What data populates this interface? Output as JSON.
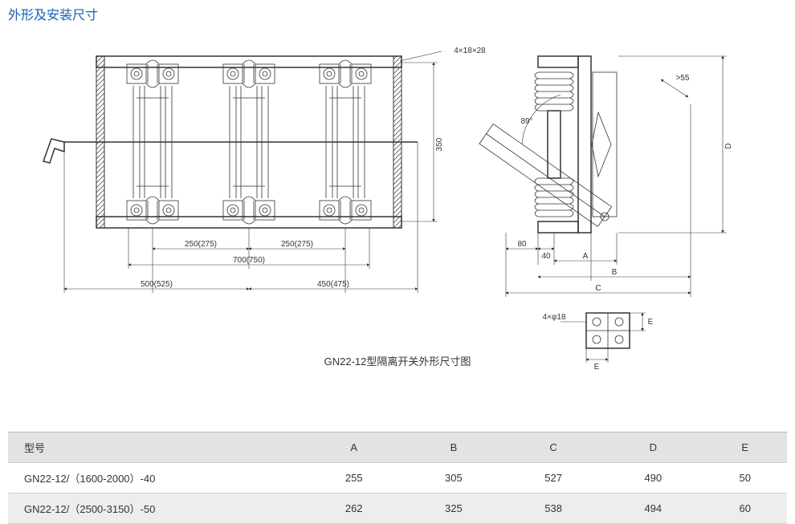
{
  "title": "外形及安装尺寸",
  "caption": "GN22-12型隔离开关外形尺寸图",
  "front": {
    "hole_label": "4×18×28",
    "height": "350",
    "spacing_l": "250(275)",
    "spacing_r": "250(275)",
    "width_inner": "700(750)",
    "width_left": "500(525)",
    "width_right": "450(475)"
  },
  "side": {
    "angle": "89°",
    "swing": ">55",
    "off_l": "80",
    "off_r": "40",
    "dim_a": "A",
    "dim_b": "B",
    "dim_c": "C",
    "dim_d": "D"
  },
  "bracket": {
    "hole": "4×φ18",
    "dim_e1": "E",
    "dim_e2": "E"
  },
  "table": {
    "columns": [
      "型号",
      "A",
      "B",
      "C",
      "D",
      "E"
    ],
    "rows": [
      [
        "GN22-12/（1600-2000）-40",
        "255",
        "305",
        "527",
        "490",
        "50"
      ],
      [
        "GN22-12/（2500-3150）-50",
        "262",
        "325",
        "538",
        "494",
        "60"
      ]
    ],
    "header_bg": "#e2e4e3",
    "row_alt_bg": "#ecedec",
    "border_color": "#cfcfcf",
    "font_size": 13
  },
  "colors": {
    "title": "#1a5fb4",
    "stroke": "#333333",
    "background": "#ffffff"
  }
}
